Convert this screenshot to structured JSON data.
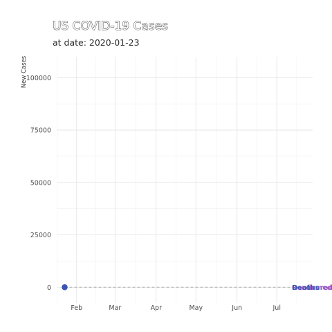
{
  "title": "US COVID-19 Cases",
  "subtitle": "at date: 2020-01-23",
  "chart_data": {
    "type": "line",
    "title": "US COVID-19 Cases",
    "subtitle": "at date: 2020-01-23",
    "xlabel": "",
    "ylabel": "New Cases",
    "x_type": "date",
    "xlim": [
      "2020-01-17",
      "2020-07-28"
    ],
    "ylim": [
      -7500,
      110000
    ],
    "x_ticks": [
      {
        "date": "2020-02-01",
        "label": "Feb"
      },
      {
        "date": "2020-03-01",
        "label": "Mar"
      },
      {
        "date": "2020-04-01",
        "label": "Apr"
      },
      {
        "date": "2020-05-01",
        "label": "May"
      },
      {
        "date": "2020-06-01",
        "label": "Jun"
      },
      {
        "date": "2020-07-01",
        "label": "Jul"
      }
    ],
    "y_ticks": [
      0,
      25000,
      50000,
      75000,
      100000
    ],
    "y_tick_labels": [
      "0",
      "25000",
      "50000",
      "75000",
      "100000"
    ],
    "grid": true,
    "reference_line": {
      "y": 0,
      "style": "dashed",
      "color": "#aaaaaa"
    },
    "series": [
      {
        "name": "Confirmed",
        "color": "#c060c8",
        "points": [
          {
            "x": "2020-01-23",
            "y": 0
          }
        ]
      },
      {
        "name": "Recovered",
        "color": "#8b5cc4",
        "points": [
          {
            "x": "2020-01-23",
            "y": 0
          }
        ]
      },
      {
        "name": "Deaths",
        "color": "#3a55b4",
        "points": [
          {
            "x": "2020-01-23",
            "y": 0
          }
        ]
      }
    ],
    "end_labels_at": "2020-07-28"
  }
}
